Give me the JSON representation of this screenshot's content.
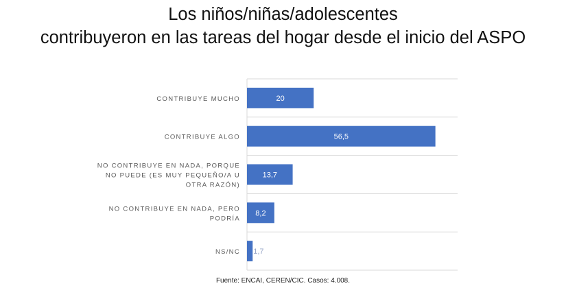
{
  "title_line1": "Los niños/niñas/adolescentes",
  "title_line2": "contribuyeron  en las tareas del hogar desde el inicio del ASPO",
  "source": "Fuente: ENCAI, CEREN/CIC. Casos: 4.008.",
  "colors": {
    "bar": "#4472C4",
    "grid": "#D9D9D9",
    "label": "#595959"
  },
  "chart_data": {
    "type": "bar",
    "orientation": "horizontal",
    "categories": [
      [
        "CONTRIBUYE MUCHO"
      ],
      [
        "CONTRIBUYE ALGO"
      ],
      [
        "NO CONTRIBUYE EN NADA,  PORQUE",
        "NO PUEDE (ES MUY PEQUEÑO/A U",
        "OTRA RAZÓN)"
      ],
      [
        "NO CONTRIBUYE EN NADA, PERO",
        "PODRÍA"
      ],
      [
        "NS/NC"
      ]
    ],
    "values": [
      20,
      56.5,
      13.7,
      8.2,
      1.7
    ],
    "value_labels": [
      "20",
      "56,5",
      "13,7",
      "8,2",
      "1,7"
    ],
    "xlim": [
      0,
      60
    ],
    "grid": false
  }
}
